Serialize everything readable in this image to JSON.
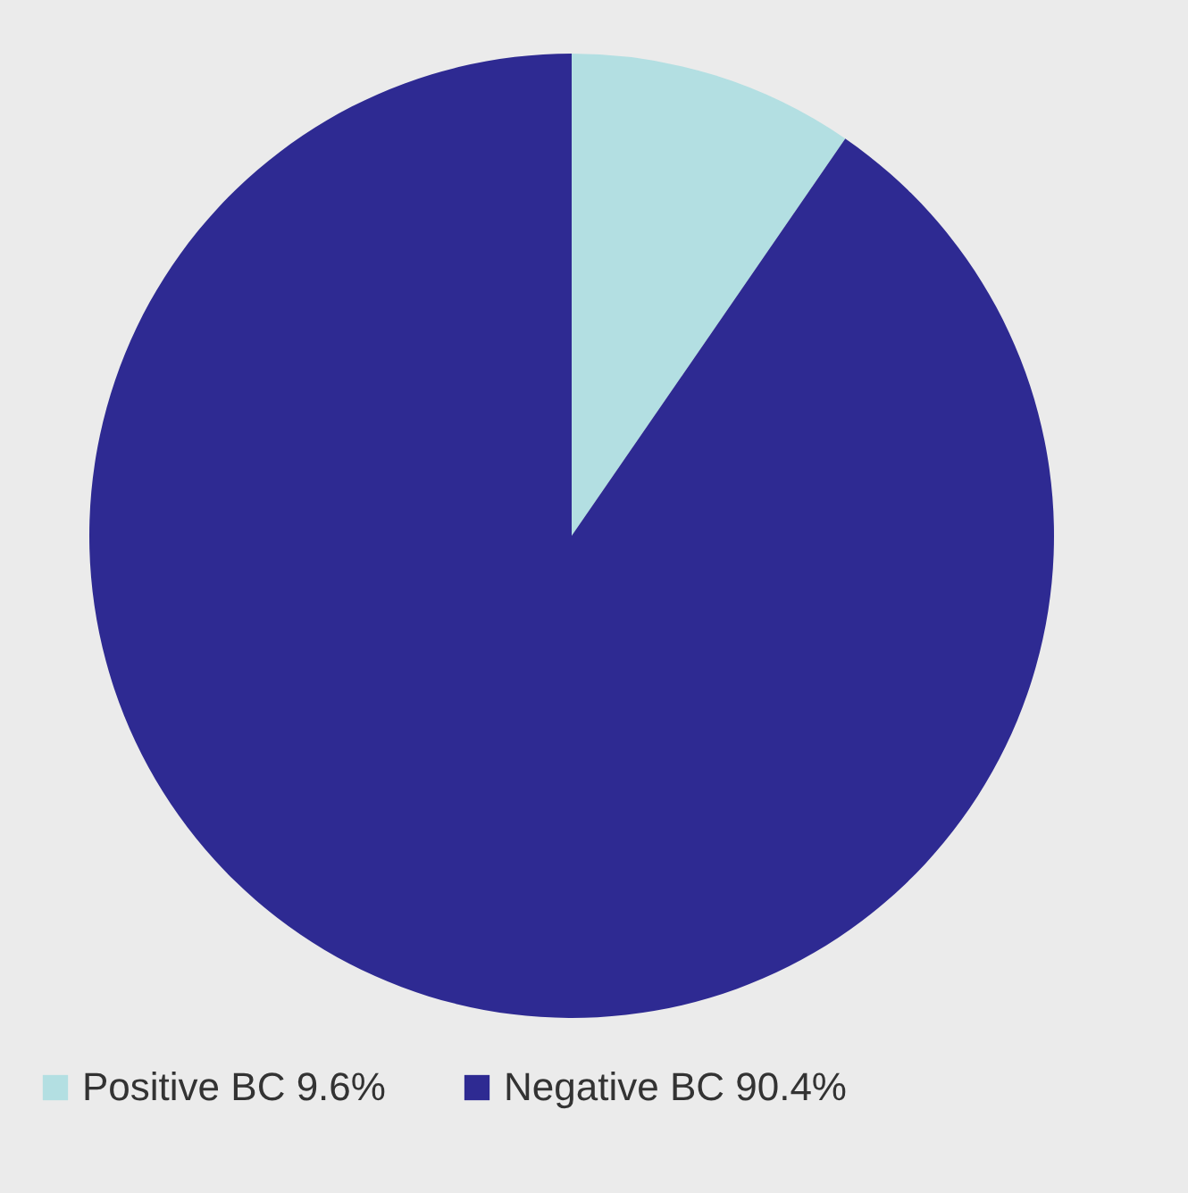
{
  "chart_data": {
    "type": "pie",
    "categories": [
      "Positive BC 9.6%",
      "Negative BC 90.4%"
    ],
    "values": [
      9.6,
      90.4
    ],
    "colors": [
      "#b3dfe2",
      "#2e2a92"
    ],
    "legend": "bottom"
  }
}
